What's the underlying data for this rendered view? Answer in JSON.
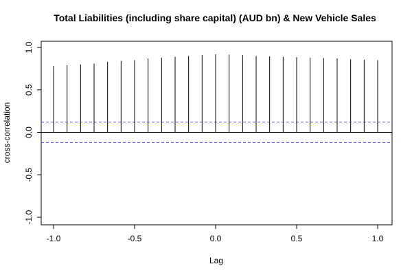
{
  "chart_data": {
    "type": "bar",
    "title": "Total Liabilities (including share capital) (AUD bn)  & New Vehicle Sales",
    "xlabel": "Lag",
    "ylabel": "cross-correlation",
    "xlim": [
      -1.0,
      1.0
    ],
    "ylim": [
      -1.0,
      1.0
    ],
    "x_ticks": [
      -1.0,
      -0.5,
      0.0,
      0.5,
      1.0
    ],
    "x_tick_labels": [
      "-1.0",
      "-0.5",
      "0.0",
      "0.5",
      "1.0"
    ],
    "y_ticks": [
      -1.0,
      -0.5,
      0.0,
      0.5,
      1.0
    ],
    "y_tick_labels": [
      "-1.0",
      "-0.5",
      "0.0",
      "0.5",
      "1.0"
    ],
    "grid": false,
    "confidence_bounds": [
      0.12,
      -0.12
    ],
    "confidence_color": "#4b4bdc",
    "spike_color": "#000000",
    "x": [
      -1.0,
      -0.9167,
      -0.8333,
      -0.75,
      -0.6667,
      -0.5833,
      -0.5,
      -0.4167,
      -0.3333,
      -0.25,
      -0.1667,
      -0.0833,
      0.0,
      0.0833,
      0.1667,
      0.25,
      0.3333,
      0.4167,
      0.5,
      0.5833,
      0.6667,
      0.75,
      0.8333,
      0.9167,
      1.0
    ],
    "values": [
      0.78,
      0.79,
      0.8,
      0.81,
      0.83,
      0.84,
      0.85,
      0.87,
      0.88,
      0.89,
      0.9,
      0.91,
      0.92,
      0.915,
      0.91,
      0.9,
      0.895,
      0.89,
      0.885,
      0.88,
      0.875,
      0.87,
      0.86,
      0.855,
      0.85
    ]
  }
}
